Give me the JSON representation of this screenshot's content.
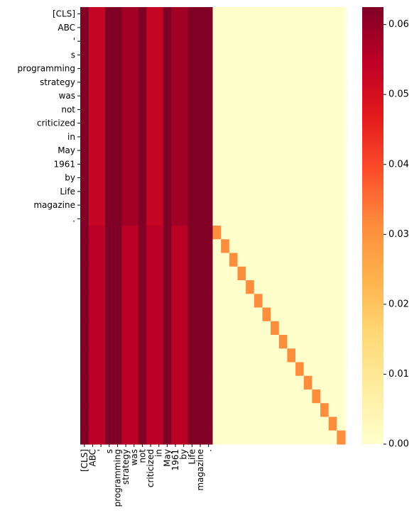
{
  "chart_data": {
    "type": "heatmap",
    "tokens": [
      "[CLS]",
      "ABC",
      "'",
      "s",
      "programming",
      "strategy",
      "was",
      "not",
      "criticized",
      "in",
      "May",
      "1961",
      "by",
      "Life",
      "magazine",
      "."
    ],
    "n_cols": 32,
    "n_rows": 32,
    "ylabels": [
      "[CLS]",
      "ABC",
      "'",
      "s",
      "programming",
      "strategy",
      "was",
      "not",
      "criticized",
      "in",
      "May",
      "1961",
      "by",
      "Life",
      "magazine",
      "."
    ],
    "xlabels": [
      "[CLS]",
      "ABC",
      "'",
      "s",
      "programming",
      "strategy",
      "was",
      "not",
      "criticized",
      "in",
      "May",
      "1961",
      "by",
      "Life",
      "magazine",
      "."
    ],
    "row_profile_top": [
      0.0625,
      0.053,
      0.053,
      0.0625,
      0.0625,
      0.058,
      0.058,
      0.0625,
      0.053,
      0.053,
      0.0625,
      0.058,
      0.058,
      0.0625,
      0.0625,
      0.0625
    ],
    "row_profile_bottom": [
      0.0625,
      0.055,
      0.055,
      0.0625,
      0.0625,
      0.055,
      0.055,
      0.0625,
      0.055,
      0.055,
      0.0625,
      0.055,
      0.055,
      0.0625,
      0.0625,
      0.0625
    ],
    "diagonal_value": 0.031,
    "background_value": 0.0,
    "colorbar": {
      "colormap": "YlOrRd",
      "vmin": 0.0,
      "vmax": 0.0625,
      "ticks": [
        0.0,
        0.01,
        0.02,
        0.03,
        0.04,
        0.05,
        0.06
      ],
      "tick_labels": [
        "0.00",
        "0.01",
        "0.02",
        "0.03",
        "0.04",
        "0.05",
        "0.06"
      ]
    }
  }
}
